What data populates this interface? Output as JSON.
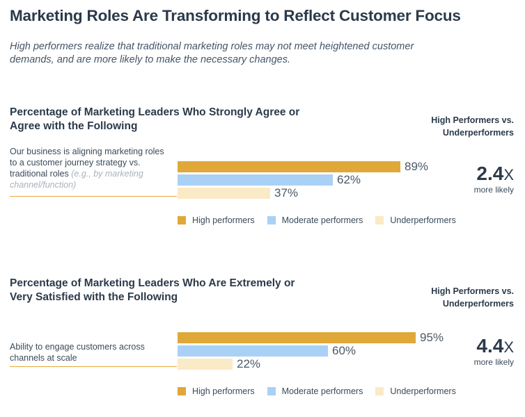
{
  "title": "Marketing Roles Are Transforming to Reflect Customer Focus",
  "subtitle": "High performers realize that traditional marketing roles may not meet heightened customer demands, and are more likely to make the necessary changes.",
  "colors": {
    "high": "#e0a838",
    "moderate": "#a9d1f6",
    "under": "#faeac6"
  },
  "chart_data": [
    {
      "type": "bar",
      "title": "Percentage of Marketing Leaders Who Strongly Agree or Agree with the Following",
      "categories": [
        "Our business is aligning marketing roles to a customer journey strategy vs. traditional roles (e.g., by marketing channel/function)"
      ],
      "statement_main": "Our business is aligning marketing roles to a customer journey strategy vs. traditional roles",
      "statement_aside": "(e.g., by marketing channel/function)",
      "series": [
        {
          "name": "High performers",
          "values": [
            89
          ],
          "label": "89%"
        },
        {
          "name": "Moderate performers",
          "values": [
            62
          ],
          "label": "62%"
        },
        {
          "name": "Underperformers",
          "values": [
            37
          ],
          "label": "37%"
        }
      ],
      "comparison_title": "High Performers vs. Underperformers",
      "ratio": "2.4",
      "ratio_suffix": "X",
      "ratio_label": "more likely",
      "ylim": [
        0,
        100
      ]
    },
    {
      "type": "bar",
      "title": "Percentage of Marketing Leaders Who Are Extremely or Very Satisfied with the Following",
      "categories": [
        "Ability to engage customers across channels at scale"
      ],
      "statement_main": "Ability to engage customers across channels at scale",
      "statement_aside": "",
      "series": [
        {
          "name": "High performers",
          "values": [
            95
          ],
          "label": "95%"
        },
        {
          "name": "Moderate performers",
          "values": [
            60
          ],
          "label": "60%"
        },
        {
          "name": "Underperformers",
          "values": [
            22
          ],
          "label": "22%"
        }
      ],
      "comparison_title": "High Performers vs. Underperformers",
      "ratio": "4.4",
      "ratio_suffix": "X",
      "ratio_label": "more likely",
      "ylim": [
        0,
        100
      ]
    }
  ]
}
